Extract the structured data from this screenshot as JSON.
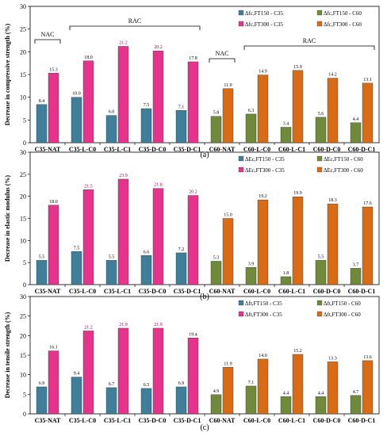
{
  "chart_data": [
    {
      "type": "bar",
      "panel_label": "(a)",
      "ylabel": "Decrease in compressive strength (%)",
      "ylim": [
        0,
        30
      ],
      "yticks": [
        "0",
        "5",
        "10",
        "15",
        "20",
        "25",
        "30"
      ],
      "categories": [
        "C35-NAT",
        "C35-L-C0",
        "C35-L-C1",
        "C35-D-C0",
        "C35-D-C1",
        "C60-NAT",
        "C60-L-C0",
        "C60-L-C1",
        "C60-D-C0",
        "C60-D-C1"
      ],
      "series": [
        {
          "name": "Δfc,FT150 - C35",
          "color": "#3f7f99",
          "values": [
            8.4,
            10.0,
            6.0,
            7.5,
            7.1,
            null,
            null,
            null,
            null,
            null
          ],
          "labels": [
            "8.4",
            "10.0",
            "6.0",
            "7.5",
            "7.1"
          ]
        },
        {
          "name": "Δfc,FT300 - C35",
          "color": "#e8338c",
          "values": [
            15.3,
            18.0,
            21.2,
            20.2,
            17.8,
            null,
            null,
            null,
            null,
            null
          ],
          "labels": [
            "15.3",
            "18.0",
            "21.2",
            "20.2",
            "17.8"
          ]
        },
        {
          "name": "Δfc,FT150 - C60",
          "color": "#6f8a3a",
          "values": [
            null,
            null,
            null,
            null,
            null,
            5.8,
            6.3,
            3.4,
            5.6,
            4.4
          ],
          "labels": [
            "5.8",
            "6.3",
            "3.4",
            "5.6",
            "4.4"
          ]
        },
        {
          "name": "Δfc,FT300 - C60",
          "color": "#d96b14",
          "values": [
            null,
            null,
            null,
            null,
            null,
            11.9,
            14.9,
            15.9,
            14.2,
            13.1
          ],
          "labels": [
            "11.9",
            "14.9",
            "15.9",
            "14.2",
            "13.1"
          ]
        }
      ],
      "annotations": {
        "nac_left": "NAC",
        "rac_left": "RAC",
        "nac_right": "NAC",
        "rac_right": "RAC"
      }
    },
    {
      "type": "bar",
      "panel_label": "(b)",
      "ylabel": "Decrease in elastic modulus (%)",
      "ylim": [
        0,
        30
      ],
      "yticks": [
        "0",
        "5",
        "10",
        "15",
        "20",
        "25",
        "30"
      ],
      "categories": [
        "C35-NAT",
        "C35-L-C0",
        "C35-L-C1",
        "C35-D-C0",
        "C35-D-C1",
        "C60-NAT",
        "C60-L-C0",
        "C60-L-C1",
        "C60-D-C0",
        "C60-D-C1"
      ],
      "series": [
        {
          "name": "ΔEc,FT150 - C35",
          "color": "#3f7f99",
          "values": [
            5.5,
            7.5,
            5.5,
            6.6,
            7.2,
            null,
            null,
            null,
            null,
            null
          ],
          "labels": [
            "5.5",
            "7.5",
            "5.5",
            "6.6",
            "7.2"
          ]
        },
        {
          "name": "ΔEc,FT300 - C35",
          "color": "#e8338c",
          "values": [
            18.0,
            21.5,
            23.9,
            21.8,
            20.2,
            null,
            null,
            null,
            null,
            null
          ],
          "labels": [
            "18.0",
            "21.5",
            "23.9",
            "21.8",
            "20.2"
          ]
        },
        {
          "name": "ΔEc,FT150 - C60",
          "color": "#6f8a3a",
          "values": [
            null,
            null,
            null,
            null,
            null,
            5.3,
            3.9,
            1.8,
            5.5,
            3.7
          ],
          "labels": [
            "5.3",
            "3.9",
            "1.8",
            "5.5",
            "3.7"
          ]
        },
        {
          "name": "ΔEc,FT300 - C60",
          "color": "#d96b14",
          "values": [
            null,
            null,
            null,
            null,
            null,
            15.0,
            19.2,
            19.9,
            18.3,
            17.6
          ],
          "labels": [
            "15.0",
            "19.2",
            "19.9",
            "18.3",
            "17.6"
          ]
        }
      ]
    },
    {
      "type": "bar",
      "panel_label": "(c)",
      "ylabel": "Decrease in tensile strength (%)",
      "ylim": [
        0,
        30
      ],
      "yticks": [
        "0",
        "5",
        "10",
        "15",
        "20",
        "25",
        "30"
      ],
      "categories": [
        "C35-NAT",
        "C35-L-C0",
        "C35-L-C1",
        "C35-D-C0",
        "C35-D-C1",
        "C60-NAT",
        "C60-L-C0",
        "C60-L-C1",
        "C60-D-C0",
        "C60-D-C1"
      ],
      "series": [
        {
          "name": "Δft,FT150 - C35",
          "color": "#3f7f99",
          "values": [
            6.9,
            9.4,
            6.7,
            6.5,
            6.9,
            null,
            null,
            null,
            null,
            null
          ],
          "labels": [
            "6.9",
            "9.4",
            "6.7",
            "6.5",
            "6.9"
          ]
        },
        {
          "name": "Δft,FT300 - C35",
          "color": "#e8338c",
          "values": [
            16.1,
            21.2,
            21.9,
            21.9,
            19.4,
            null,
            null,
            null,
            null,
            null
          ],
          "labels": [
            "16.1",
            "21.2",
            "21.9",
            "21.9",
            "19.4"
          ]
        },
        {
          "name": "Δft,FT150 - C60",
          "color": "#6f8a3a",
          "values": [
            null,
            null,
            null,
            null,
            null,
            4.9,
            7.1,
            4.4,
            4.4,
            4.7
          ],
          "labels": [
            "4.9",
            "7.1",
            "4.4",
            "4.4",
            "4.7"
          ]
        },
        {
          "name": "Δft,FT300 - C60",
          "color": "#d96b14",
          "values": [
            null,
            null,
            null,
            null,
            null,
            11.9,
            14.0,
            15.2,
            13.3,
            13.6
          ],
          "labels": [
            "11.9",
            "14.0",
            "15.2",
            "13.3",
            "13.6"
          ]
        }
      ]
    }
  ]
}
